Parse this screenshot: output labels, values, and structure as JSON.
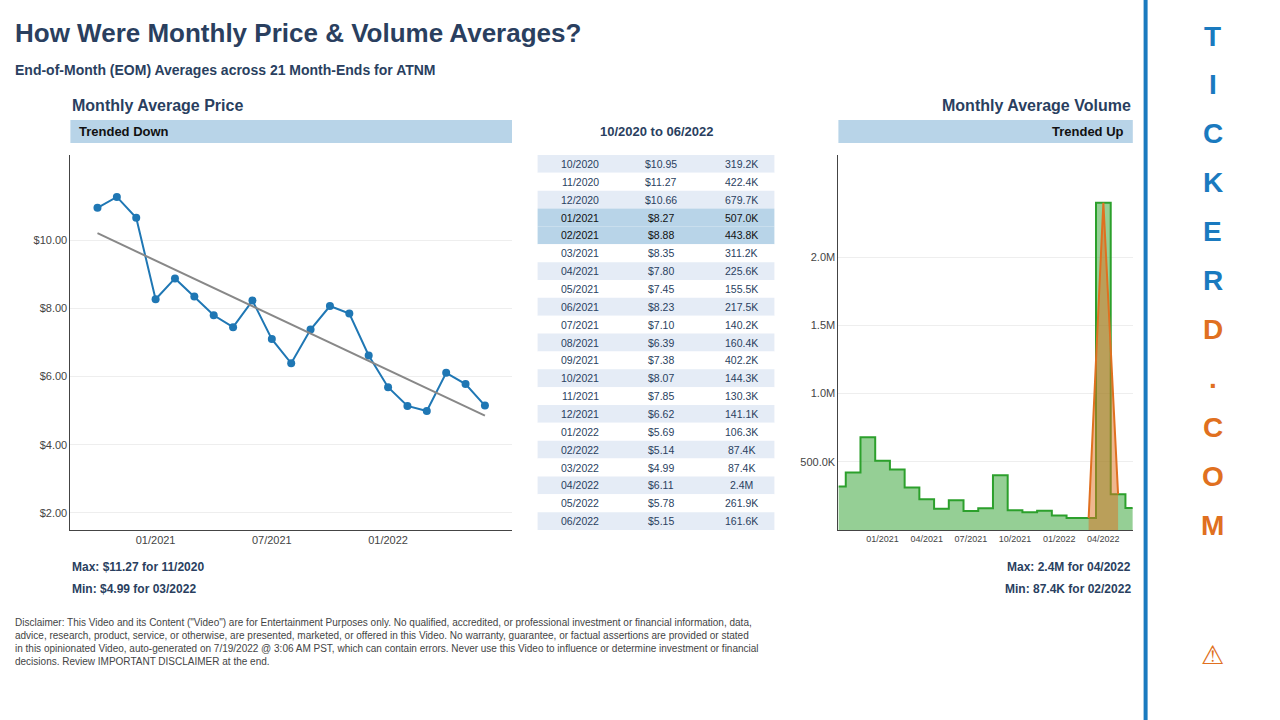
{
  "title": "How Were Monthly Price & Volume Averages?",
  "subtitle": "End-of-Month (EOM) Averages across 21 Month-Ends for ATNM",
  "annotations": [
    {
      "text": "T",
      "color": "#1a7abf"
    },
    {
      "text": "I",
      "color": "#1a7abf"
    },
    {
      "text": "C",
      "color": "#1a7abf"
    },
    {
      "text": "K",
      "color": "#1a7abf"
    },
    {
      "text": "E",
      "color": "#1a7abf"
    },
    {
      "text": "R",
      "color": "#1a7abf"
    },
    {
      "text": "D",
      "color": "#e07020"
    },
    {
      "text": ".",
      "color": "#e07020"
    },
    {
      "text": "C",
      "color": "#e07020"
    },
    {
      "text": "O",
      "color": "#e07020"
    },
    {
      "text": "M",
      "color": "#e07020"
    },
    {
      "text": "⚠",
      "color": "#e07020"
    }
  ],
  "caption": "Disclaimer: This Video and its Content (\"Video\") are for Entertainment Purposes only. No qualified, accredited, or professional investment or financial information, data, advice, research, product, service, or otherwise, are presented, marketed, or offered in this Video. No warranty, guarantee, or factual assertions are provided or stated in this opinionated Video, auto-generated on 7/19/2022 @ 3:06 AM PST, which can contain errors. Never use this Video to influence or determine investment or financial decisions. Review IMPORTANT DISCLAIMER at the end.",
  "chart_data": [
    {
      "type": "line",
      "title": "Monthly Average Price",
      "categories": [
        "10/2020",
        "11/2020",
        "12/2020",
        "01/2021",
        "02/2021",
        "03/2021",
        "04/2021",
        "05/2021",
        "06/2021",
        "07/2021",
        "08/2021",
        "09/2021",
        "10/2021",
        "11/2021",
        "12/2021",
        "01/2022",
        "02/2022",
        "03/2022",
        "04/2022",
        "05/2022",
        "06/2022"
      ],
      "series": [
        {
          "type": "line",
          "marker": "circle",
          "values": [
            10.95,
            11.27,
            10.66,
            8.27,
            8.88,
            8.35,
            7.8,
            7.45,
            8.23,
            7.1,
            6.39,
            7.38,
            8.07,
            7.85,
            6.62,
            5.69,
            5.14,
            4.99,
            6.11,
            5.78,
            5.15
          ]
        },
        {
          "type": "line",
          "color": "#888888",
          "values": [
            10.2062,
            9.9386,
            9.671,
            9.4034,
            9.1357,
            8.8681,
            8.6005,
            8.3329,
            8.0652,
            7.7976,
            7.53,
            7.2624,
            6.9948,
            6.7271,
            6.4595,
            6.1919,
            5.9243,
            5.6566,
            5.389,
            5.1214,
            4.8538
          ]
        }
      ],
      "ylim": [
        1.5,
        12.5
      ],
      "yticks": [
        {
          "value": 2.0,
          "label": "$2.00"
        },
        {
          "value": 4.0,
          "label": "$4.00"
        },
        {
          "value": 6.0,
          "label": "$6.00"
        },
        {
          "value": 8.0,
          "label": "$8.00"
        },
        {
          "value": 10.0,
          "label": "$10.00"
        }
      ],
      "xticks": [
        "01/2021",
        "07/2021",
        "01/2022"
      ],
      "grid": true,
      "annotations": [
        {
          "text": "Trended Down",
          "color": "#b8d4e8"
        },
        {
          "text": "Max: $11.27 for 11/2020"
        },
        {
          "text": "Min: $4.99 for 03/2022"
        }
      ]
    },
    {
      "type": "table",
      "title": "10/2020 to 06/2022",
      "color": "#b8d4e8",
      "categories": [
        "10/2020",
        "11/2020",
        "12/2020",
        "01/2021",
        "02/2021",
        "03/2021",
        "04/2021",
        "05/2021",
        "06/2021",
        "07/2021",
        "08/2021",
        "09/2021",
        "10/2021",
        "11/2021",
        "12/2021",
        "01/2022",
        "02/2022",
        "03/2022",
        "04/2022",
        "05/2022",
        "06/2022"
      ],
      "series": [
        {
          "values": [
            10.95,
            11.27,
            10.66,
            8.27,
            8.88,
            8.35,
            7.8,
            7.45,
            8.23,
            7.1,
            6.39,
            7.38,
            8.07,
            7.85,
            6.62,
            5.69,
            5.14,
            4.99,
            6.11,
            5.78,
            5.15
          ],
          "value_labels": [
            "$10.95",
            "$11.27",
            "$10.66",
            "$8.27",
            "$8.88",
            "$8.35",
            "$7.80",
            "$7.45",
            "$8.23",
            "$7.10",
            "$6.39",
            "$7.38",
            "$8.07",
            "$7.85",
            "$6.62",
            "$5.69",
            "$5.14",
            "$4.99",
            "$6.11",
            "$5.78",
            "$5.15"
          ]
        },
        {
          "values": [
            319200,
            422400,
            679700,
            507000,
            443800,
            311200,
            225600,
            155500,
            217500,
            140200,
            160400,
            402200,
            144300,
            130300,
            141100,
            106300,
            87400,
            87400,
            2400000,
            261900,
            161600
          ],
          "value_labels": [
            "319.2K",
            "422.4K",
            "679.7K",
            "507.0K",
            "443.8K",
            "311.2K",
            "225.6K",
            "155.5K",
            "217.5K",
            "140.2K",
            "160.4K",
            "402.2K",
            "144.3K",
            "130.3K",
            "141.1K",
            "106.3K",
            "87.4K",
            "87.4K",
            "2.4M",
            "261.9K",
            "161.6K"
          ]
        }
      ]
    },
    {
      "type": "area",
      "title": "Monthly Average Volume",
      "categories": [
        "10/2020",
        "11/2020",
        "12/2020",
        "01/2021",
        "02/2021",
        "03/2021",
        "04/2021",
        "05/2021",
        "06/2021",
        "07/2021",
        "08/2021",
        "09/2021",
        "10/2021",
        "11/2021",
        "12/2021",
        "01/2022",
        "02/2022",
        "03/2022",
        "04/2022",
        "05/2022",
        "06/2022"
      ],
      "series": [
        {
          "type": "area",
          "line_style": "step",
          "values": [
            319200,
            422400,
            679700,
            507000,
            443800,
            311200,
            225600,
            155500,
            217500,
            140200,
            160400,
            402200,
            144300,
            130300,
            141100,
            106300,
            87400,
            87400,
            2400000,
            261900,
            161600
          ]
        },
        {
          "type": "area",
          "color": "#e07020",
          "values": [
            null,
            null,
            null,
            null,
            null,
            null,
            null,
            null,
            null,
            null,
            null,
            null,
            null,
            null,
            null,
            null,
            null,
            87400,
            2400000,
            261900,
            null
          ]
        }
      ],
      "ylim": [
        0,
        2750000
      ],
      "yticks": [
        {
          "value": 500000,
          "label": "500.0K"
        },
        {
          "value": 1000000,
          "label": "1.0M"
        },
        {
          "value": 1500000,
          "label": "1.5M"
        },
        {
          "value": 2000000,
          "label": "2.0M"
        }
      ],
      "xticks": [
        "01/2021",
        "04/2021",
        "07/2021",
        "10/2021",
        "01/2022",
        "04/2022"
      ],
      "grid": true,
      "annotations": [
        {
          "text": "Trended Up",
          "color": "#b8d4e8"
        },
        {
          "text": "Max: 2.4M for 04/2022"
        },
        {
          "text": "Min: 87.4K for 02/2022"
        }
      ]
    }
  ]
}
